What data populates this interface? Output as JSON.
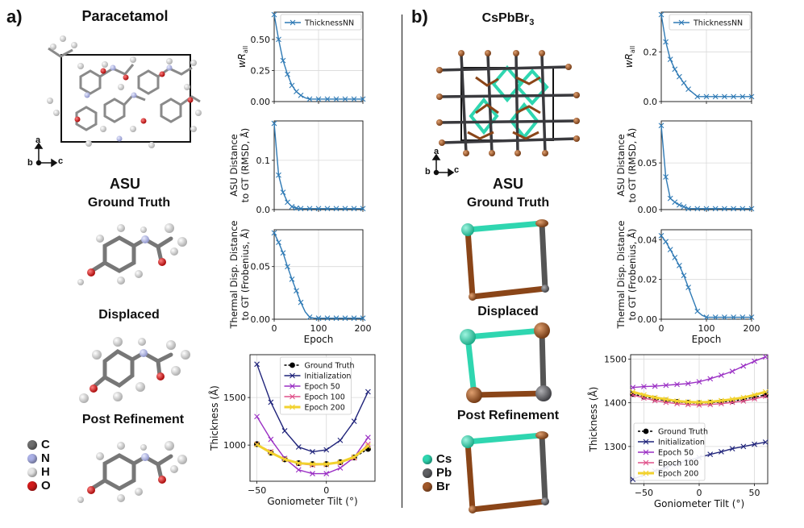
{
  "panel_a": {
    "letter": "a)",
    "molecule": "Paracetamol",
    "asu_heading": "ASU",
    "stage_ground_truth": "Ground Truth",
    "stage_displaced": "Displaced",
    "stage_post": "Post Refinement",
    "axes": {
      "a": "a",
      "b": "b",
      "c": "c"
    },
    "atom_legend": [
      {
        "symbol": "C",
        "color": "#6e6e6e"
      },
      {
        "symbol": "N",
        "color": "#aab0e6"
      },
      {
        "symbol": "H",
        "color": "#e6e6e6"
      },
      {
        "symbol": "O",
        "color": "#d21a1a"
      }
    ]
  },
  "panel_b": {
    "letter": "b)",
    "molecule_base": "CsPbBr",
    "molecule_sub": "3",
    "asu_heading": "ASU",
    "stage_ground_truth": "Ground Truth",
    "stage_displaced": "Displaced",
    "stage_post": "Post Refinement",
    "axes": {
      "a": "a",
      "b": "b",
      "c": "c"
    },
    "atom_legend": [
      {
        "symbol": "Cs",
        "color": "#2fd6b0"
      },
      {
        "symbol": "Pb",
        "color": "#5f6064"
      },
      {
        "symbol": "Br",
        "color": "#a0582a"
      }
    ]
  },
  "colors": {
    "thicknessnn": "#2f7ab5",
    "ground_truth": "#000000",
    "initialization": "#1f237a",
    "epoch50": "#9a2fc4",
    "epoch100": "#e0508a",
    "epoch200": "#f2d22e"
  },
  "chart_data": [
    {
      "id": "a1",
      "type": "line",
      "series": [
        {
          "name": "ThicknessNN",
          "x": [
            0,
            10,
            20,
            30,
            40,
            50,
            60,
            70,
            80,
            90,
            100,
            110,
            120,
            130,
            140,
            150,
            160,
            170,
            180,
            190,
            200
          ],
          "values": [
            0.7,
            0.5,
            0.33,
            0.22,
            0.13,
            0.08,
            0.05,
            0.03,
            0.02,
            0.02,
            0.02,
            0.02,
            0.02,
            0.02,
            0.02,
            0.02,
            0.02,
            0.02,
            0.02,
            0.02,
            0.02
          ]
        }
      ],
      "xlim": [
        0,
        200
      ],
      "ylim": [
        0,
        0.72
      ],
      "yticks": [
        0.0,
        0.25,
        0.5
      ],
      "ytick_labels": [
        "0.00",
        "0.25",
        "0.50"
      ],
      "ylabel_var": "w",
      "ylabel_base": "R",
      "ylabel_sub": "all",
      "legend": "top-right"
    },
    {
      "id": "a2",
      "type": "line",
      "series": [
        {
          "name": "ThicknessNN",
          "x": [
            0,
            10,
            20,
            30,
            40,
            50,
            60,
            70,
            80,
            90,
            100,
            110,
            120,
            130,
            140,
            150,
            160,
            170,
            180,
            190,
            200
          ],
          "values": [
            0.175,
            0.07,
            0.035,
            0.015,
            0.006,
            0.003,
            0.002,
            0.002,
            0.002,
            0.002,
            0.002,
            0.002,
            0.002,
            0.002,
            0.002,
            0.002,
            0.002,
            0.002,
            0.002,
            0.002,
            0.002
          ]
        }
      ],
      "xlim": [
        0,
        200
      ],
      "ylim": [
        0,
        0.18
      ],
      "yticks": [
        0.0,
        0.1
      ],
      "ytick_labels": [
        "0.0",
        "0.1"
      ],
      "ylabel_lines": [
        "ASU Distance",
        "to GT (RMSD, Å)"
      ]
    },
    {
      "id": "a3",
      "type": "line",
      "series": [
        {
          "name": "ThicknessNN",
          "x": [
            0,
            10,
            20,
            30,
            40,
            50,
            60,
            70,
            80,
            90,
            100,
            110,
            120,
            130,
            140,
            150,
            160,
            170,
            180,
            190,
            200
          ],
          "values": [
            0.082,
            0.073,
            0.063,
            0.05,
            0.038,
            0.027,
            0.016,
            0.007,
            0.002,
            0.001,
            0.001,
            0.001,
            0.001,
            0.001,
            0.001,
            0.001,
            0.001,
            0.001,
            0.001,
            0.001,
            0.001
          ]
        }
      ],
      "xlim": [
        0,
        200
      ],
      "ylim": [
        0,
        0.085
      ],
      "yticks": [
        0.0,
        0.05
      ],
      "ytick_labels": [
        "0.00",
        "0.05"
      ],
      "xticks": [
        0,
        100,
        200
      ],
      "xtick_labels": [
        "0",
        "100",
        "200"
      ],
      "xlabel": "Epoch",
      "ylabel_lines": [
        "Thermal Disp. Distance",
        "to GT (Frobenius, Å)"
      ]
    },
    {
      "id": "a4",
      "type": "line",
      "x": [
        -50,
        -40,
        -30,
        -20,
        -10,
        0,
        10,
        20,
        30
      ],
      "series": [
        {
          "name": "Ground Truth",
          "values": [
            1010,
            920,
            850,
            810,
            800,
            800,
            820,
            870,
            960
          ]
        },
        {
          "name": "Initialization",
          "values": [
            1850,
            1450,
            1150,
            980,
            930,
            950,
            1050,
            1250,
            1560
          ]
        },
        {
          "name": "Epoch 50",
          "values": [
            1300,
            1060,
            860,
            740,
            700,
            700,
            760,
            870,
            1080
          ]
        },
        {
          "name": "Epoch 100",
          "values": [
            1010,
            930,
            850,
            805,
            790,
            795,
            815,
            865,
            1010
          ]
        },
        {
          "name": "Epoch 200",
          "values": [
            1005,
            920,
            850,
            810,
            800,
            800,
            820,
            875,
            990
          ]
        }
      ],
      "xlim": [
        -55,
        35
      ],
      "ylim": [
        620,
        1950
      ],
      "yticks": [
        1000,
        1500
      ],
      "ytick_labels": [
        "1000",
        "1500"
      ],
      "xticks": [
        -50,
        0
      ],
      "xtick_labels": [
        "−50",
        "0"
      ],
      "xlabel": "Goniometer Tilt (°)",
      "ylabel": "Thickness (Å)",
      "legend": "top-center"
    },
    {
      "id": "b1",
      "type": "line",
      "series": [
        {
          "name": "ThicknessNN",
          "x": [
            0,
            10,
            20,
            30,
            40,
            50,
            60,
            70,
            80,
            90,
            100,
            110,
            120,
            130,
            140,
            150,
            160,
            170,
            180,
            190,
            200
          ],
          "values": [
            0.35,
            0.24,
            0.17,
            0.13,
            0.1,
            0.075,
            0.05,
            0.035,
            0.02,
            0.02,
            0.02,
            0.02,
            0.02,
            0.02,
            0.02,
            0.02,
            0.02,
            0.02,
            0.02,
            0.02,
            0.02
          ]
        }
      ],
      "xlim": [
        0,
        200
      ],
      "ylim": [
        0,
        0.36
      ],
      "yticks": [
        0.0,
        0.2
      ],
      "ytick_labels": [
        "0.0",
        "0.2"
      ],
      "ylabel_var": "w",
      "ylabel_base": "R",
      "ylabel_sub": "all",
      "legend": "top-right"
    },
    {
      "id": "b2",
      "type": "line",
      "series": [
        {
          "name": "ThicknessNN",
          "x": [
            0,
            10,
            20,
            30,
            40,
            50,
            60,
            70,
            80,
            90,
            100,
            110,
            120,
            130,
            140,
            150,
            160,
            170,
            180,
            190,
            200
          ],
          "values": [
            0.09,
            0.035,
            0.012,
            0.008,
            0.005,
            0.003,
            0.001,
            0.001,
            0.001,
            0.001,
            0.001,
            0.001,
            0.001,
            0.001,
            0.001,
            0.001,
            0.001,
            0.001,
            0.001,
            0.001,
            0.001
          ]
        }
      ],
      "xlim": [
        0,
        200
      ],
      "ylim": [
        0,
        0.095
      ],
      "yticks": [
        0.0,
        0.05
      ],
      "ytick_labels": [
        "0.00",
        "0.05"
      ],
      "ylabel_lines": [
        "ASU Distance",
        "to GT (RMSD, Å)"
      ]
    },
    {
      "id": "b3",
      "type": "line",
      "series": [
        {
          "name": "ThicknessNN",
          "x": [
            0,
            10,
            20,
            30,
            40,
            50,
            60,
            70,
            80,
            90,
            100,
            110,
            120,
            130,
            140,
            150,
            160,
            170,
            180,
            190,
            200
          ],
          "values": [
            0.042,
            0.039,
            0.035,
            0.031,
            0.027,
            0.022,
            0.016,
            0.01,
            0.004,
            0.002,
            0.001,
            0.001,
            0.001,
            0.001,
            0.001,
            0.001,
            0.001,
            0.001,
            0.001,
            0.001,
            0.001
          ]
        }
      ],
      "xlim": [
        0,
        200
      ],
      "ylim": [
        0,
        0.045
      ],
      "yticks": [
        0.0,
        0.02,
        0.04
      ],
      "ytick_labels": [
        "0.00",
        "0.02",
        "0.04"
      ],
      "xticks": [
        0,
        100,
        200
      ],
      "xtick_labels": [
        "0",
        "100",
        "200"
      ],
      "xlabel": "Epoch",
      "ylabel_lines": [
        "Thermal Disp. Distance",
        "to GT (Frobenius, Å)"
      ]
    },
    {
      "id": "b4",
      "type": "line",
      "x": [
        -60,
        -50,
        -40,
        -30,
        -20,
        -10,
        0,
        10,
        20,
        30,
        40,
        50,
        60
      ],
      "series": [
        {
          "name": "Ground Truth",
          "values": [
            1420,
            1414,
            1409,
            1405,
            1402,
            1400,
            1399,
            1400,
            1402,
            1404,
            1408,
            1413,
            1418
          ]
        },
        {
          "name": "Initialization",
          "values": [
            1225,
            1235,
            1244,
            1252,
            1260,
            1268,
            1275,
            1282,
            1288,
            1295,
            1300,
            1305,
            1310
          ]
        },
        {
          "name": "Epoch 50",
          "values": [
            1435,
            1437,
            1438,
            1440,
            1442,
            1444,
            1448,
            1455,
            1463,
            1472,
            1484,
            1495,
            1505
          ]
        },
        {
          "name": "Epoch 100",
          "values": [
            1418,
            1411,
            1405,
            1401,
            1398,
            1396,
            1395,
            1396,
            1398,
            1401,
            1404,
            1409,
            1415
          ]
        },
        {
          "name": "Epoch 200",
          "values": [
            1425,
            1418,
            1412,
            1408,
            1404,
            1402,
            1401,
            1402,
            1405,
            1408,
            1412,
            1418,
            1425
          ]
        }
      ],
      "xlim": [
        -62,
        62
      ],
      "ylim": [
        1215,
        1510
      ],
      "yticks": [
        1300,
        1400,
        1500
      ],
      "ytick_labels": [
        "1300",
        "1400",
        "1500"
      ],
      "xticks": [
        -50,
        0,
        50
      ],
      "xtick_labels": [
        "−50",
        "0",
        "50"
      ],
      "xlabel": "Goniometer Tilt (°)",
      "ylabel": "Thickness (Å)",
      "legend": "bottom-left"
    }
  ]
}
